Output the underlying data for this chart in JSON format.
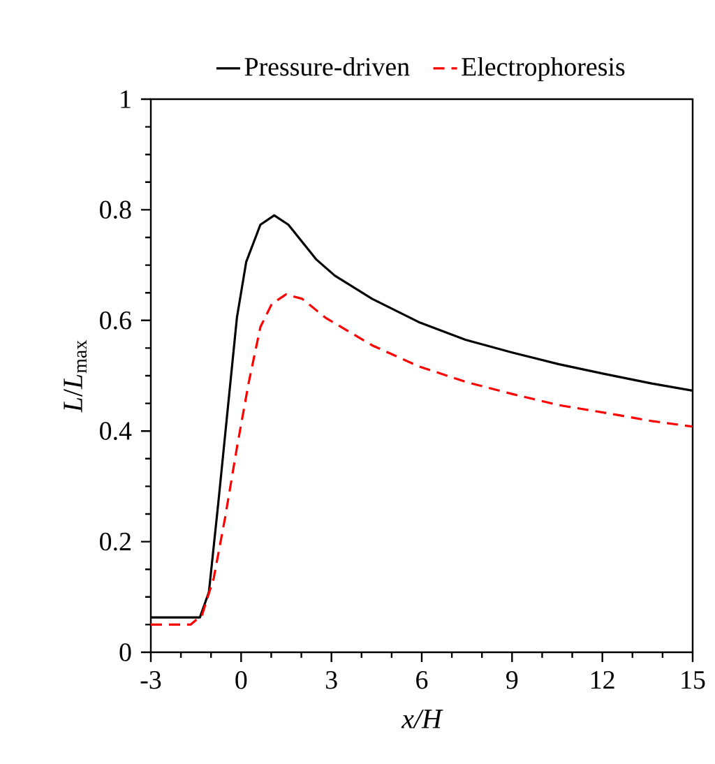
{
  "chart_data": {
    "type": "line",
    "xlabel": "*x*/*H*",
    "ylabel": "*L*/*L*$_{max}$",
    "xlim": [
      -3,
      15
    ],
    "ylim": [
      0,
      1
    ],
    "xticks": [
      -3,
      {
        "value": -2,
        "label": null
      },
      {
        "value": -1,
        "label": null
      },
      0,
      {
        "value": 1,
        "label": null
      },
      {
        "value": 2,
        "label": null
      },
      3,
      {
        "value": 4,
        "label": null
      },
      {
        "value": 5,
        "label": null
      },
      6,
      {
        "value": 7,
        "label": null
      },
      {
        "value": 8,
        "label": null
      },
      9,
      {
        "value": 10,
        "label": null
      },
      {
        "value": 11,
        "label": null
      },
      12,
      {
        "value": 13,
        "label": null
      },
      {
        "value": 14,
        "label": null
      },
      15
    ],
    "yticks": [
      0,
      {
        "value": 0.05,
        "label": null
      },
      {
        "value": 0.1,
        "label": null
      },
      {
        "value": 0.15,
        "label": null
      },
      0.2,
      {
        "value": 0.25,
        "label": null
      },
      {
        "value": 0.3,
        "label": null
      },
      {
        "value": 0.35,
        "label": null
      },
      0.4,
      {
        "value": 0.45,
        "label": null
      },
      {
        "value": 0.5,
        "label": null
      },
      {
        "value": 0.55,
        "label": null
      },
      0.6,
      {
        "value": 0.65,
        "label": null
      },
      {
        "value": 0.7,
        "label": null
      },
      {
        "value": 0.75,
        "label": null
      },
      0.8,
      {
        "value": 0.85,
        "label": null
      },
      {
        "value": 0.9,
        "label": null
      },
      {
        "value": 0.95,
        "label": null
      },
      1
    ],
    "grid": false,
    "legend": "top",
    "marker": "none",
    "series": [
      {
        "name": "Pressure-driven",
        "color": "#000000",
        "line_style": "solid",
        "x": [
          -3,
          -1.37,
          -1.07,
          -0.76,
          -0.45,
          -0.14,
          0.17,
          0.64,
          1.1,
          1.57,
          2.5,
          3.11,
          4.35,
          5.9,
          7.45,
          9.0,
          10.54,
          12.09,
          13.64,
          15
        ],
        "values": [
          0.063,
          0.063,
          0.109,
          0.269,
          0.437,
          0.605,
          0.706,
          0.773,
          0.79,
          0.773,
          0.71,
          0.681,
          0.639,
          0.597,
          0.565,
          0.542,
          0.521,
          0.503,
          0.486,
          0.473
        ]
      },
      {
        "name": "Electrophoresis",
        "color": "#ff0000",
        "line_style": "dashed",
        "x": [
          -3,
          -1.68,
          -1.3,
          -0.91,
          -0.53,
          -0.14,
          0.25,
          0.64,
          1.02,
          1.49,
          2.03,
          2.8,
          4.35,
          5.9,
          7.45,
          9.0,
          10.54,
          12.09,
          13.64,
          15
        ],
        "values": [
          0.05,
          0.05,
          0.067,
          0.134,
          0.244,
          0.37,
          0.487,
          0.588,
          0.63,
          0.647,
          0.639,
          0.605,
          0.555,
          0.517,
          0.489,
          0.467,
          0.447,
          0.433,
          0.418,
          0.408
        ]
      }
    ]
  }
}
